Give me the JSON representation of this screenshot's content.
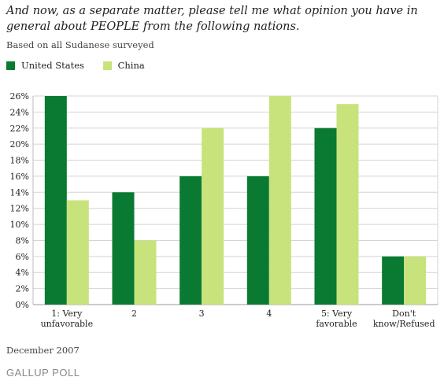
{
  "title": "And now, as a separate matter, please tell me what opinion you have in general about PEOPLE from the following nations.",
  "subtitle": "Based on all Sudanese surveyed",
  "legend": [
    {
      "label": "United States",
      "color": "#0a7a33"
    },
    {
      "label": "China",
      "color": "#c8e37b"
    }
  ],
  "chart_data": {
    "type": "bar",
    "categories": [
      [
        "1: Very",
        "unfavorable"
      ],
      [
        "2"
      ],
      [
        "3"
      ],
      [
        "4"
      ],
      [
        "5: Very",
        "favorable"
      ],
      [
        "Don't",
        "know/Refused"
      ]
    ],
    "series": [
      {
        "name": "United States",
        "values": [
          26,
          14,
          16,
          16,
          22,
          6
        ],
        "color": "#0a7a33"
      },
      {
        "name": "China",
        "values": [
          13,
          8,
          22,
          26,
          25,
          6
        ],
        "color": "#c8e37b"
      }
    ],
    "ylim": [
      0,
      26
    ],
    "yticks": [
      "0%",
      "2%",
      "4%",
      "6%",
      "8%",
      "10%",
      "12%",
      "14%",
      "16%",
      "18%",
      "20%",
      "22%",
      "24%",
      "26%"
    ],
    "grid": true,
    "legend_position": "top-left"
  },
  "footer": {
    "date": "December 2007",
    "logo": "GALLUP POLL"
  }
}
